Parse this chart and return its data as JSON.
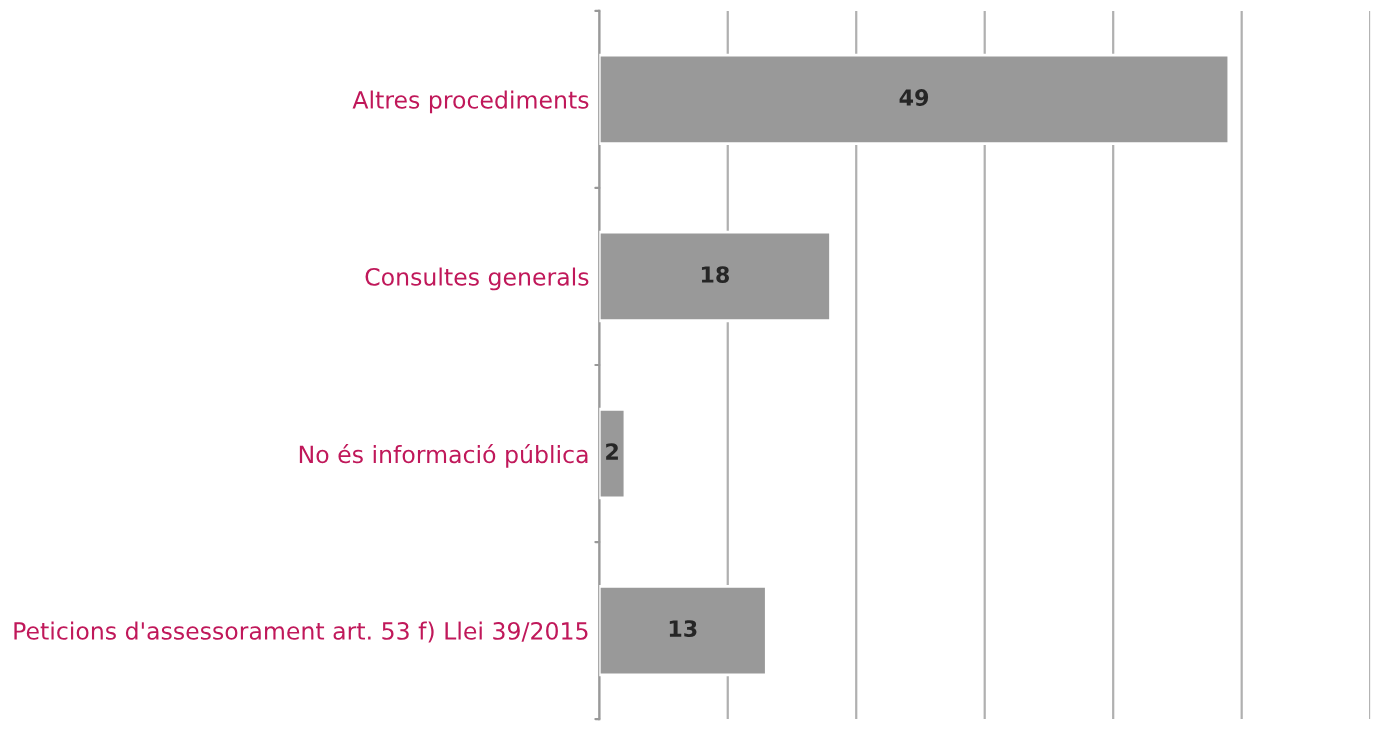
{
  "chart_data": {
    "type": "bar",
    "orientation": "horizontal",
    "categories": [
      "Altres procediments",
      "Consultes generals",
      "No és informació pública",
      "Peticions d'assessorament art. 53 f) Llei 39/2015"
    ],
    "values": [
      49,
      18,
      2,
      13
    ],
    "color": "#999999",
    "xlim": [
      0,
      60
    ],
    "xticks": [
      {
        "value": 0,
        "label": null
      },
      {
        "value": 10,
        "label": null
      },
      {
        "value": 20,
        "label": null
      },
      {
        "value": 30,
        "label": null
      },
      {
        "value": 40,
        "label": null
      },
      {
        "value": 50,
        "label": null
      },
      {
        "value": 60,
        "label": null
      }
    ],
    "tick_labels": "y",
    "grid": "x",
    "data_labels": true,
    "legend": false
  }
}
